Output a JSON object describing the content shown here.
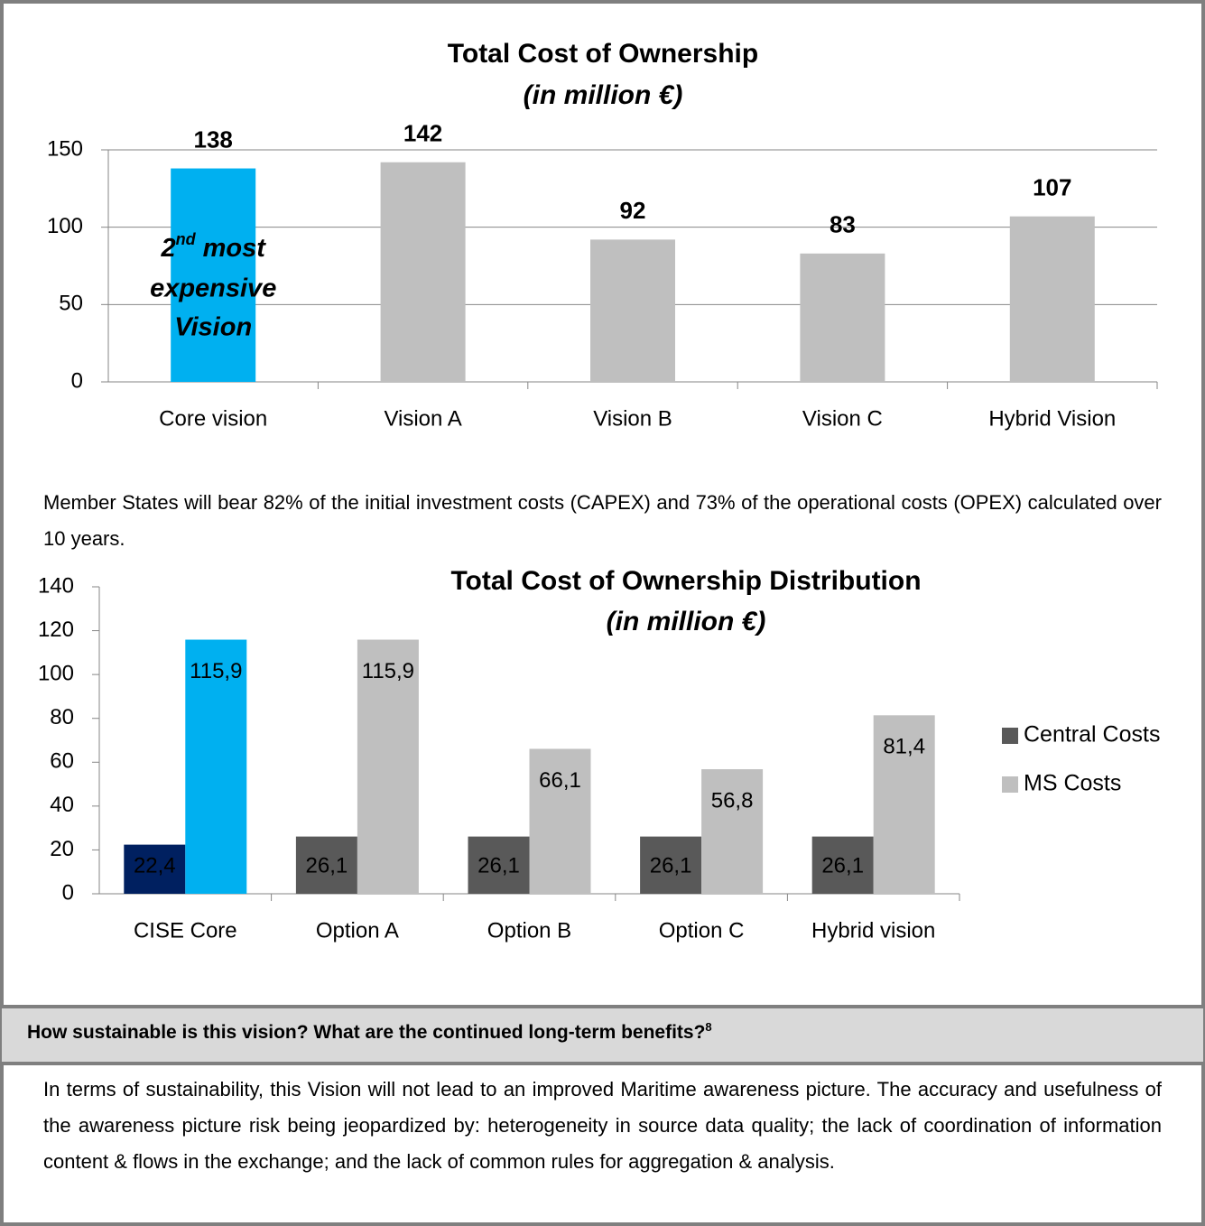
{
  "chart_data": [
    {
      "type": "bar",
      "title": "Total Cost of Ownership",
      "subtitle": "(in million €)",
      "categories": [
        "Core vision",
        "Vision A",
        "Vision B",
        "Vision C",
        "Hybrid Vision"
      ],
      "values": [
        138,
        142,
        92,
        83,
        107
      ],
      "colors": [
        "#00b0f0",
        "#bfbfbf",
        "#bfbfbf",
        "#bfbfbf",
        "#bfbfbf"
      ],
      "ylim": [
        0,
        150
      ],
      "yticks": [
        0,
        50,
        100,
        150
      ],
      "grid": true,
      "annotation": {
        "line1": [
          "2",
          "nd",
          "most"
        ],
        "line2": "expensive",
        "line3": "Vision"
      }
    },
    {
      "type": "grouped_bar",
      "title": "Total Cost of Ownership Distribution",
      "subtitle": "(in million €)",
      "categories": [
        "CISE Core",
        "Option A",
        "Option B",
        "Option C",
        "Hybrid vision"
      ],
      "series": [
        {
          "name": "Central Costs",
          "color": "#595959",
          "colors": [
            "#002060",
            "#595959",
            "#595959",
            "#595959",
            "#595959"
          ],
          "values": [
            22.4,
            26.1,
            26.1,
            26.1,
            26.1
          ],
          "value_labels": [
            "22,4",
            "26,1",
            "26,1",
            "26,1",
            "26,1"
          ]
        },
        {
          "name": "MS Costs",
          "color": "#bfbfbf",
          "colors": [
            "#00b0f0",
            "#bfbfbf",
            "#bfbfbf",
            "#bfbfbf",
            "#bfbfbf"
          ],
          "values": [
            115.9,
            115.9,
            66.1,
            56.8,
            81.4
          ],
          "value_labels": [
            "115,9",
            "115,9",
            "66,1",
            "56,8",
            "81,4"
          ]
        }
      ],
      "ylim": [
        0,
        140
      ],
      "yticks": [
        0,
        20,
        40,
        60,
        80,
        100,
        120,
        140
      ],
      "grid": false,
      "legend": "right"
    }
  ],
  "paragraph": "Member States will bear 82% of the initial investment costs (CAPEX) and 73% of the operational costs (OPEX) calculated over 10 years.",
  "section": {
    "heading": "How sustainable is this vision? What are the continued long-term benefits?",
    "footnote": "8",
    "body": "In terms of sustainability, this Vision will not lead to an improved Maritime awareness picture. The accuracy and usefulness of the awareness picture risk being jeopardized by: heterogeneity in source data quality; the lack of coordination of information content & flows in the exchange; and the lack of common rules for aggregation & analysis."
  }
}
